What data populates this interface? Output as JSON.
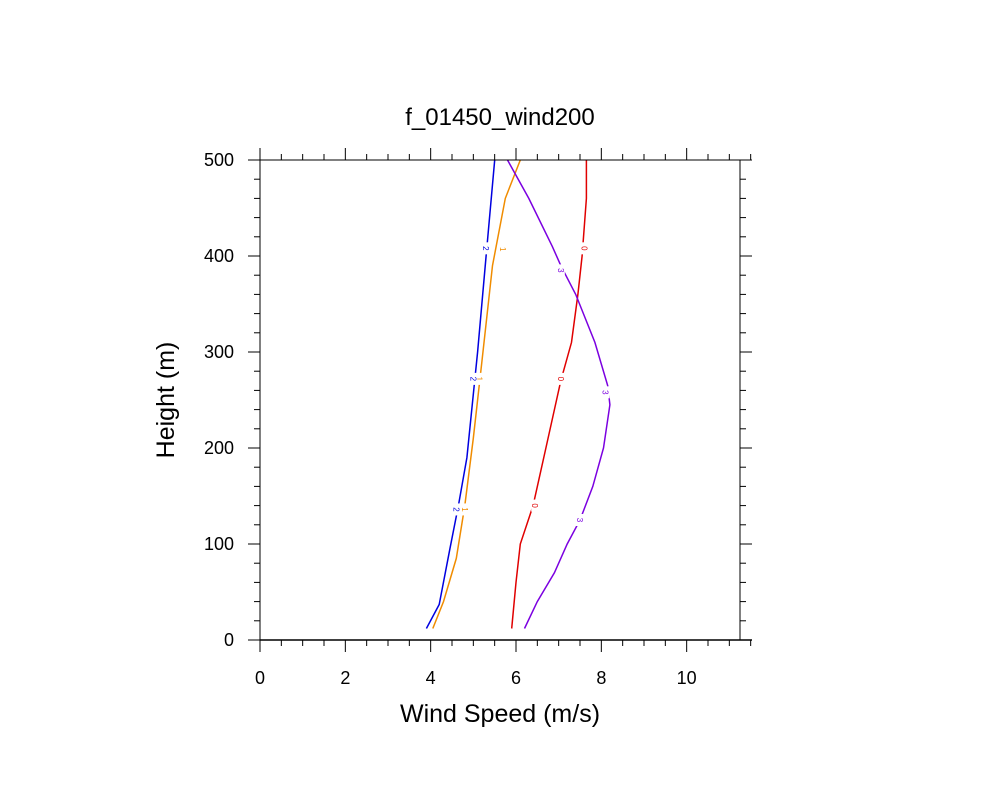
{
  "chart_data": {
    "type": "line",
    "title": "f_01450_wind200",
    "xlabel": "Wind Speed (m/s)",
    "ylabel": "Height (m)",
    "xlim": [
      0,
      11.25
    ],
    "ylim": [
      0,
      500
    ],
    "x_ticks": [
      0,
      2,
      4,
      6,
      8,
      10
    ],
    "y_ticks": [
      0,
      100,
      200,
      300,
      400,
      500
    ],
    "x_tick_labels": [
      "0",
      "2",
      "4",
      "6",
      "8",
      "10"
    ],
    "y_tick_labels": [
      "0",
      "100",
      "200",
      "300",
      "400",
      "500"
    ],
    "grid": false,
    "legend": "none",
    "series": [
      {
        "label": "0",
        "color": "#e00000",
        "points": [
          [
            5.9,
            12
          ],
          [
            6.0,
            60
          ],
          [
            6.1,
            100
          ],
          [
            6.4,
            140
          ],
          [
            6.7,
            200
          ],
          [
            7.05,
            270
          ],
          [
            7.3,
            310
          ],
          [
            7.45,
            360
          ],
          [
            7.55,
            400
          ],
          [
            7.65,
            460
          ],
          [
            7.65,
            500
          ]
        ],
        "label_at": [
          [
            6.45,
            140
          ],
          [
            7.05,
            272
          ],
          [
            7.6,
            408
          ]
        ]
      },
      {
        "label": "1",
        "color": "#f08c00",
        "points": [
          [
            4.05,
            12
          ],
          [
            4.3,
            40
          ],
          [
            4.6,
            85
          ],
          [
            4.8,
            140
          ],
          [
            5.0,
            210
          ],
          [
            5.2,
            290
          ],
          [
            5.45,
            390
          ],
          [
            5.75,
            460
          ],
          [
            6.1,
            500
          ]
        ],
        "label_at": [
          [
            4.8,
            136
          ],
          [
            5.15,
            272
          ],
          [
            5.7,
            407
          ]
        ]
      },
      {
        "label": "2",
        "color": "#0000e0",
        "points": [
          [
            3.9,
            12
          ],
          [
            4.2,
            37
          ],
          [
            4.45,
            95
          ],
          [
            4.65,
            140
          ],
          [
            4.85,
            190
          ],
          [
            5.1,
            300
          ],
          [
            5.3,
            400
          ],
          [
            5.5,
            500
          ]
        ],
        "label_at": [
          [
            4.6,
            136
          ],
          [
            5.0,
            272
          ],
          [
            5.3,
            408
          ]
        ]
      },
      {
        "label": "3",
        "color": "#7b00e0",
        "points": [
          [
            6.2,
            12
          ],
          [
            6.5,
            40
          ],
          [
            6.9,
            70
          ],
          [
            7.2,
            100
          ],
          [
            7.5,
            125
          ],
          [
            7.8,
            160
          ],
          [
            8.05,
            200
          ],
          [
            8.2,
            245
          ],
          [
            8.15,
            265
          ],
          [
            7.85,
            310
          ],
          [
            7.4,
            360
          ],
          [
            7.05,
            390
          ],
          [
            6.85,
            410
          ],
          [
            6.3,
            460
          ],
          [
            5.8,
            500
          ]
        ],
        "label_at": [
          [
            7.5,
            125
          ],
          [
            8.1,
            258
          ],
          [
            7.05,
            385
          ]
        ]
      }
    ]
  }
}
